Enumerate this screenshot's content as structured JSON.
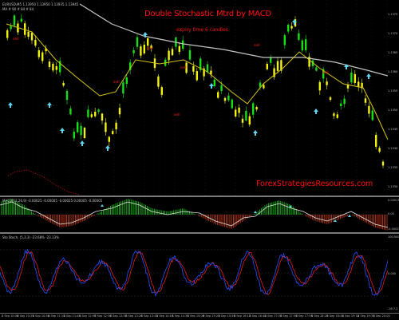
{
  "chart": {
    "title": "Double Stochastic Mtrd by MACD",
    "subtitle": "expiry time 6 candles",
    "watermark": "ForexStrategiesResources.com",
    "symbol_header": "EURUSD,M5 1.13950 1.13950 1.13935 1.13945",
    "price_header2": "MA # 90 # 84 # 84",
    "macd_header": "MACD(12,26,9) -0.00025 -0.00005 -0.00025 0.00005 -0.00005",
    "stoch_header": "Sto Stoch. (5,3,3) -23.68% -23.13%",
    "price_ticks": [
      "1.1375",
      "1.1370",
      "1.1365",
      "1.1360",
      "1.1355",
      "1.1350",
      "1.1345",
      "1.1340",
      "1.1335",
      "1.1330"
    ],
    "macd_ticks": [
      "0.000173",
      "0.00",
      "-0.000291"
    ],
    "stoch_ticks": [
      "100.000",
      "0.000",
      "-26.7.2"
    ],
    "time_labels": [
      "8 Sep 10:00",
      "8 Sep 10:25",
      "8 Sep 10:50",
      "8 Sep 11:15",
      "8 Sep 11:40",
      "8 Sep 12:05",
      "8 Sep 12:30",
      "8 Sep 12:55",
      "8 Sep 13:20",
      "8 Sep 13:45",
      "8 Sep 14:10",
      "8 Sep 14:35",
      "8 Sep 15:00",
      "8 Sep 15:25",
      "8 Sep 15:50",
      "8 Sep 16:15",
      "8 Sep 16:40",
      "8 Sep 17:05",
      "8 Sep 17:30",
      "8 Sep 17:55",
      "8 Sep 18:20",
      "8 Sep 18:45",
      "8 Sep 19:10",
      "8 Sep 19:35",
      "8 Sep 20:00"
    ],
    "signal_labels": [
      "sell",
      "sell",
      "sell",
      "sell",
      "sell",
      "sell",
      "sell"
    ],
    "colors": {
      "bull": "#14e014",
      "bear": "#f2f20a",
      "ma_slow": "#c4c4c4",
      "ma_fast": "#d6c61a",
      "title": "#ff1010",
      "arrow_up": "#5ad6f0",
      "macd_hist_pos": "#19c419",
      "macd_hist_neg": "#c83a1c",
      "stoch_main": "#2850ff",
      "stoch_signal": "#ff2020"
    }
  }
}
